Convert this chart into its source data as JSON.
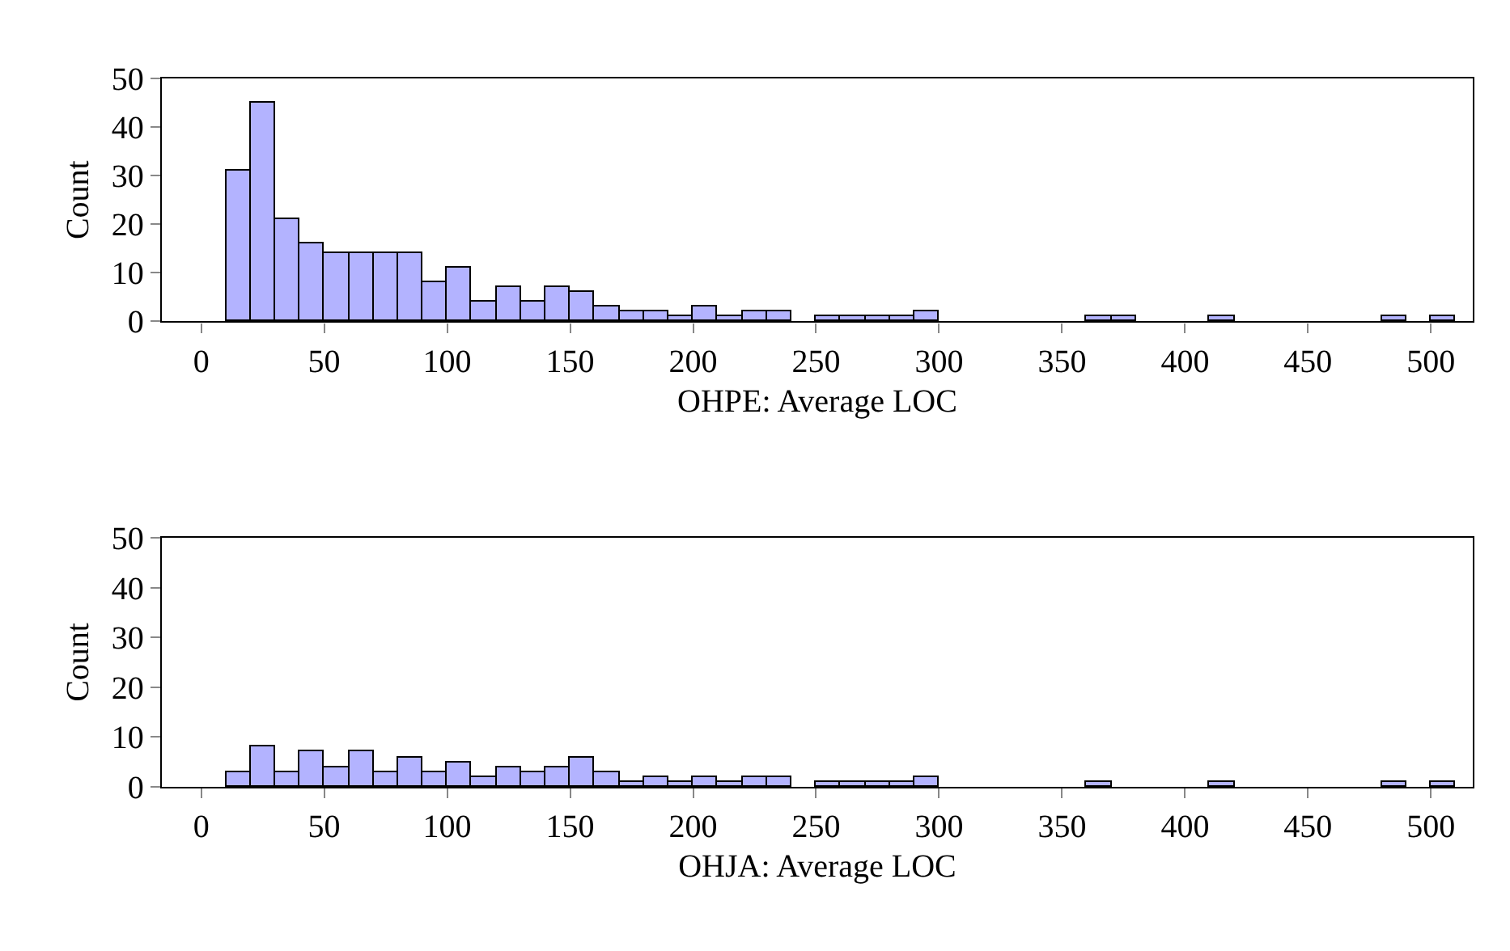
{
  "chart_data": [
    {
      "type": "histogram",
      "xlabel": "OHPE: Average LOC",
      "ylabel": "Count",
      "color": "#b3b3ff",
      "bins": [
        10,
        20,
        30,
        40,
        50,
        60,
        70,
        80,
        90,
        100,
        110,
        120,
        130,
        140,
        150,
        160,
        170,
        180,
        190,
        200,
        210,
        220,
        230,
        240,
        250,
        260,
        270,
        280,
        290,
        300,
        310,
        320,
        330,
        340,
        350,
        360,
        370,
        380,
        390,
        400,
        410,
        420,
        430,
        440,
        450,
        460,
        470,
        480,
        490,
        500,
        510
      ],
      "values": [
        31,
        45,
        21,
        16,
        14,
        14,
        14,
        14,
        8,
        11,
        4,
        7,
        4,
        7,
        6,
        3,
        2,
        2,
        1,
        3,
        1,
        2,
        2,
        0,
        1,
        1,
        1,
        1,
        2,
        0,
        0,
        0,
        0,
        0,
        0,
        1,
        1,
        0,
        0,
        0,
        1,
        0,
        0,
        0,
        0,
        0,
        0,
        1,
        0,
        1
      ],
      "xlim": [
        -16,
        517
      ],
      "xticks": [
        0,
        50,
        100,
        150,
        200,
        250,
        300,
        350,
        400,
        450,
        500
      ],
      "ylim": [
        0,
        50
      ],
      "yticks": [
        0,
        10,
        20,
        30,
        40,
        50
      ],
      "grid": false,
      "legend": false
    },
    {
      "type": "histogram",
      "xlabel": "OHJA: Average LOC",
      "ylabel": "Count",
      "color": "#b3b3ff",
      "bins": [
        10,
        20,
        30,
        40,
        50,
        60,
        70,
        80,
        90,
        100,
        110,
        120,
        130,
        140,
        150,
        160,
        170,
        180,
        190,
        200,
        210,
        220,
        230,
        240,
        250,
        260,
        270,
        280,
        290,
        300,
        310,
        320,
        330,
        340,
        350,
        360,
        370,
        380,
        390,
        400,
        410,
        420,
        430,
        440,
        450,
        460,
        470,
        480,
        490,
        500,
        510
      ],
      "values": [
        3,
        8,
        3,
        7,
        4,
        7,
        3,
        6,
        3,
        5,
        2,
        4,
        3,
        4,
        6,
        3,
        1,
        2,
        1,
        2,
        1,
        2,
        2,
        0,
        1,
        1,
        1,
        1,
        2,
        0,
        0,
        0,
        0,
        0,
        0,
        1,
        0,
        0,
        0,
        0,
        1,
        0,
        0,
        0,
        0,
        0,
        0,
        1,
        0,
        1
      ],
      "xlim": [
        -16,
        517
      ],
      "xticks": [
        0,
        50,
        100,
        150,
        200,
        250,
        300,
        350,
        400,
        450,
        500
      ],
      "ylim": [
        0,
        50
      ],
      "yticks": [
        0,
        10,
        20,
        30,
        40,
        50
      ],
      "grid": false,
      "legend": false
    }
  ]
}
